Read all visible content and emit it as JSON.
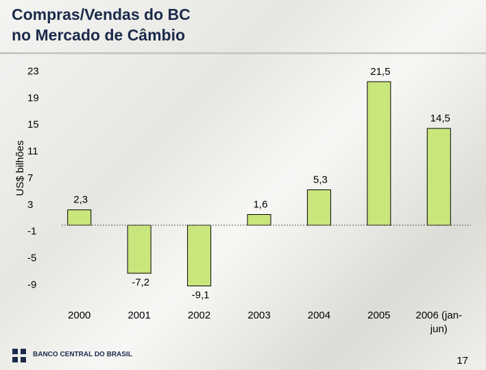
{
  "title": [
    "Compras/Vendas do BC",
    "no Mercado de Câmbio"
  ],
  "chart_data": {
    "type": "bar",
    "y_label": "US$ bilhões",
    "categories": [
      "2000",
      "2001",
      "2002",
      "2003",
      "2004",
      "2005",
      "2006 (jan-jun)"
    ],
    "values": [
      2.3,
      -7.2,
      -9.1,
      1.6,
      5.3,
      21.5,
      14.5
    ],
    "value_labels": [
      "2,3",
      "-7,2",
      "-9,1",
      "1,6",
      "5,3",
      "21,5",
      "14,5"
    ],
    "color": "#c9e67c",
    "ylim": [
      -11,
      25
    ],
    "yticks": [
      23,
      19,
      15,
      11,
      7,
      3,
      -1,
      -5,
      -9
    ],
    "grid": false
  },
  "footer": {
    "logo": "BANCO CENTRAL DO BRASIL",
    "page": "17"
  }
}
